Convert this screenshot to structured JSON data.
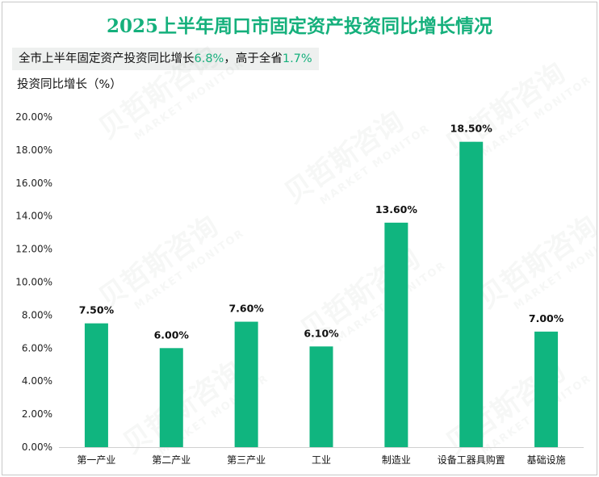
{
  "title": "2025上半年周口市固定资产投资同比增长情况",
  "note": {
    "prefix": "全市上半年固定资产投资同比增长",
    "value1": "6.8%",
    "middle": "，高于全省",
    "value2": "1.7%"
  },
  "colors": {
    "accent": "#15b07c",
    "bar": "#10b57f",
    "note_bg": "#eef0ef"
  },
  "watermark": {
    "cn": "贝哲斯咨询",
    "en": "MARKET MONITOR"
  },
  "chart_data": {
    "type": "bar",
    "title": "2025上半年周口市固定资产投资同比增长情况",
    "ylabel": "投资同比增长（%）",
    "xlabel": "",
    "ylim": [
      0,
      20
    ],
    "yticks": [
      "0.00%",
      "2.00%",
      "4.00%",
      "6.00%",
      "8.00%",
      "10.00%",
      "12.00%",
      "14.00%",
      "16.00%",
      "18.00%",
      "20.00%"
    ],
    "categories": [
      "第一产业",
      "第二产业",
      "第三产业",
      "工业",
      "制造业",
      "设备工器具购置",
      "基础设施"
    ],
    "values": [
      7.5,
      6.0,
      7.6,
      6.1,
      13.6,
      18.5,
      7.0
    ],
    "labels": [
      "7.50%",
      "6.00%",
      "7.60%",
      "6.10%",
      "13.60%",
      "18.50%",
      "7.00%"
    ],
    "grid": false,
    "legend": "none"
  }
}
